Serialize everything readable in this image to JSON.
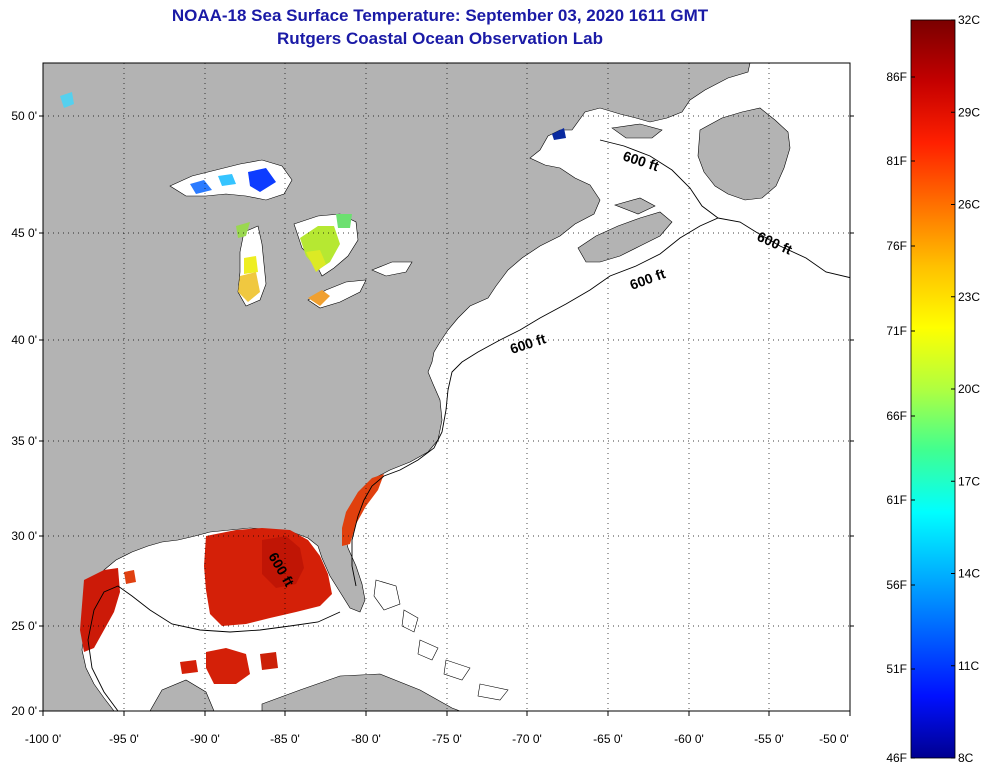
{
  "title": {
    "line1": "NOAA-18 Sea Surface Temperature:  September 03, 2020 1611 GMT",
    "line2": "Rutgers Coastal Ocean Observation Lab"
  },
  "map": {
    "lon_labels": [
      "-100 0'",
      "-95 0'",
      "-90 0'",
      "-85 0'",
      "-80 0'",
      "-75 0'",
      "-70 0'",
      "-65 0'",
      "-60 0'",
      "-55 0'",
      "-50 0'"
    ],
    "lat_labels": [
      "50 0'",
      "45 0'",
      "40 0'",
      "35 0'",
      "30 0'",
      "25 0'",
      "20 0'"
    ],
    "depth_contour_label": "600 ft",
    "colors": {
      "land": "#b3b3b3",
      "ocean_no_data": "#ffffff",
      "grid": "#000000"
    }
  },
  "colorbar": {
    "celsius_labels": [
      "32C",
      "29C",
      "26C",
      "23C",
      "20C",
      "17C",
      "14C",
      "11C",
      "8C"
    ],
    "fahrenheit_labels": [
      "86F",
      "81F",
      "76F",
      "71F",
      "66F",
      "61F",
      "56F",
      "51F",
      "46F"
    ],
    "stops": [
      "#7a0000",
      "#c40000",
      "#ff2000",
      "#ff7000",
      "#ffc000",
      "#ffff00",
      "#b0ff40",
      "#40ff90",
      "#00ffff",
      "#00b0ff",
      "#0060ff",
      "#0010ff",
      "#000090"
    ]
  }
}
